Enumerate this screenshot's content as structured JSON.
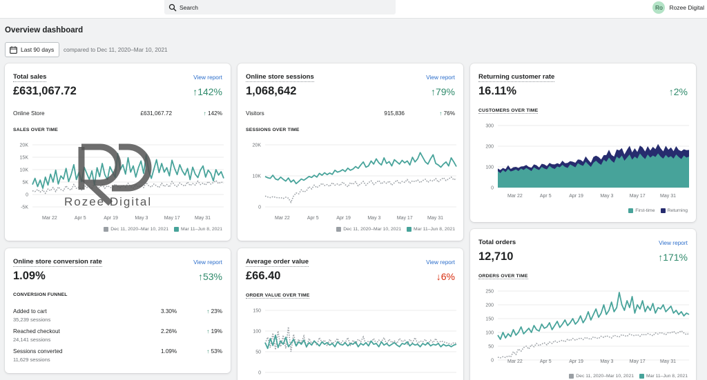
{
  "topbar": {
    "search_placeholder": "Search",
    "avatar_initials": "Ro",
    "store_name": "Rozee Digital"
  },
  "page": {
    "title": "Overview dashboard",
    "date_range_label": "Last 90 days",
    "compare_text": "compared to Dec 11, 2020–Mar 10, 2021"
  },
  "watermark": {
    "text": "Rozee Digital"
  },
  "colors": {
    "primary": "#47a39a",
    "secondary": "#9a9fa4",
    "returning": "#262c6e",
    "up": "#2f8a6b",
    "down": "#d72c0d",
    "link": "#2c6ecb"
  },
  "legend": {
    "prev": "Dec 11, 2020–Mar 10, 2021",
    "curr": "Mar 11–Jun 8, 2021",
    "first_time": "First-time",
    "returning": "Returning"
  },
  "x_ticks": [
    "Mar 22",
    "Apr 5",
    "Apr 19",
    "May 3",
    "May 17",
    "May 31"
  ],
  "cards": {
    "total_sales": {
      "title": "Total sales",
      "view": "View report",
      "value": "£631,067.72",
      "change": "↑142%",
      "row_label": "Online Store",
      "row_value": "£631,067.72",
      "row_change_arrow": "↑",
      "row_change": "142%",
      "section": "SALES OVER TIME"
    },
    "sessions": {
      "title": "Online store sessions",
      "view": "View report",
      "value": "1,068,642",
      "change": "↑79%",
      "row_label": "Visitors",
      "row_value": "915,836",
      "row_change_arrow": "↑",
      "row_change": "76%",
      "section": "SESSIONS OVER TIME"
    },
    "returning": {
      "title": "Returning customer rate",
      "value": "16.11%",
      "change": "↑2%",
      "section": "CUSTOMERS OVER TIME"
    },
    "conversion": {
      "title": "Online store conversion rate",
      "view": "View report",
      "value": "1.09%",
      "change": "↑53%",
      "section": "CONVERSION FUNNEL",
      "funnel": [
        {
          "label": "Added to cart",
          "sub": "35,239 sessions",
          "value": "3.30%",
          "arrow": "↑",
          "change": "23%"
        },
        {
          "label": "Reached checkout",
          "sub": "24,141 sessions",
          "value": "2.26%",
          "arrow": "↑",
          "change": "19%"
        },
        {
          "label": "Sessions converted",
          "sub": "11,629 sessions",
          "value": "1.09%",
          "arrow": "↑",
          "change": "53%"
        }
      ]
    },
    "aov": {
      "title": "Average order value",
      "view": "View report",
      "value": "£66.40",
      "change": "↓6%",
      "section": "ORDER VALUE OVER TIME"
    },
    "orders": {
      "title": "Total orders",
      "view": "View report",
      "value": "12,710",
      "change": "↑171%",
      "section": "ORDERS OVER TIME"
    }
  },
  "chart_data": [
    {
      "type": "line",
      "id": "sales",
      "y_ticks": [
        "20K",
        "15K",
        "10K",
        "5K",
        "0",
        "-5K"
      ],
      "ylim": [
        -5000,
        20000
      ],
      "series": [
        {
          "name": "Mar 11–Jun 8, 2021",
          "values": [
            4000,
            6500,
            3200,
            5800,
            2500,
            7000,
            3800,
            8200,
            5000,
            9800,
            4200,
            7500,
            6200,
            10500,
            5200,
            8000,
            12000,
            6000,
            9000,
            5200,
            11000,
            8500,
            6000,
            9500,
            3800,
            10800,
            7200,
            12500,
            8000,
            6000,
            11200,
            9000,
            7000,
            16500,
            10000,
            12000,
            8200,
            14800,
            9000,
            11500,
            7000,
            10800,
            13500,
            8500,
            16000,
            9500,
            6500,
            10200,
            14000,
            8800,
            12500,
            9000,
            10800,
            7500,
            13800,
            10500,
            8000,
            12000,
            9500,
            7800,
            10500,
            6000,
            11000,
            8200,
            6800,
            9800,
            11500,
            7000,
            9800,
            8500,
            5500,
            10000,
            7800,
            9200,
            6500
          ]
        },
        {
          "name": "Dec 11, 2020–Mar 10, 2021",
          "values": [
            1500,
            1200,
            2000,
            1000,
            1800,
            500,
            2200,
            1500,
            2800,
            1200,
            3000,
            2000,
            1500,
            3500,
            2200,
            1800,
            4000,
            2500,
            3000,
            1800,
            3800,
            2800,
            3200,
            2200,
            4500,
            3000,
            2800,
            4000,
            2500,
            3500,
            3000,
            2200,
            4200,
            3200,
            2800,
            3800,
            3000,
            4500,
            3200,
            2600,
            4000,
            3000,
            3600,
            2800,
            4800,
            3500,
            3000,
            4200,
            3500,
            2800,
            4500,
            3200,
            4000,
            3000,
            5200,
            3800,
            3200,
            4600,
            3800,
            3400,
            5000,
            3600,
            4400,
            3800,
            5400,
            4000,
            4600,
            3800,
            5200,
            4200,
            4800,
            5600,
            4400,
            5000,
            4600
          ]
        }
      ]
    },
    {
      "type": "line",
      "id": "sessions",
      "y_ticks": [
        "20K",
        "10K",
        "0"
      ],
      "ylim": [
        0,
        20000
      ],
      "series": [
        {
          "name": "Mar 11–Jun 8, 2021",
          "values": [
            9800,
            9400,
            9200,
            10200,
            9000,
            8700,
            9600,
            8900,
            8300,
            9300,
            8000,
            8700,
            7500,
            8200,
            9000,
            8600,
            9200,
            9800,
            9500,
            10200,
            9600,
            10800,
            10200,
            11000,
            10400,
            10900,
            10500,
            11800,
            11200,
            11500,
            12000,
            11400,
            12500,
            11800,
            12200,
            13000,
            12400,
            13500,
            14500,
            12800,
            13200,
            14800,
            13800,
            15500,
            14200,
            13500,
            15800,
            14000,
            14600,
            13200,
            15200,
            14500,
            13800,
            15000,
            14200,
            14800,
            13500,
            16000,
            14500,
            15500,
            17500,
            16000,
            14500,
            13800,
            15500,
            16800,
            14000,
            13500,
            12800,
            13800,
            14500,
            13200,
            15800,
            14500,
            13000
          ]
        },
        {
          "name": "Dec 11, 2020–Mar 10, 2021",
          "values": [
            3500,
            3200,
            3000,
            3300,
            3100,
            2900,
            3000,
            2700,
            3100,
            2800,
            1500,
            3500,
            4500,
            4200,
            5500,
            4800,
            5200,
            6500,
            5800,
            7000,
            6200,
            6800,
            7600,
            6900,
            7200,
            6600,
            7800,
            7000,
            7400,
            6900,
            8000,
            7200,
            6500,
            7800,
            7300,
            8100,
            6800,
            7500,
            8200,
            7000,
            7800,
            8400,
            7200,
            7900,
            8500,
            7400,
            8100,
            7600,
            8300,
            7000,
            7800,
            8600,
            7500,
            8200,
            7900,
            8800,
            7600,
            8400,
            8100,
            8700,
            7800,
            8500,
            8900,
            7900,
            8600,
            8300,
            9100,
            8000,
            8800,
            9400,
            8500,
            9000,
            9600,
            8700,
            9200
          ]
        }
      ]
    },
    {
      "type": "area",
      "id": "customers",
      "y_ticks": [
        "300",
        "200",
        "100",
        "0"
      ],
      "ylim": [
        0,
        300
      ],
      "series": [
        {
          "name": "First-time",
          "values": [
            80,
            70,
            85,
            75,
            90,
            78,
            82,
            88,
            80,
            92,
            85,
            95,
            88,
            80,
            98,
            90,
            85,
            100,
            92,
            88,
            105,
            95,
            90,
            102,
            98,
            110,
            100,
            95,
            112,
            105,
            98,
            118,
            110,
            105,
            125,
            112,
            100,
            120,
            130,
            118,
            110,
            135,
            125,
            145,
            130,
            120,
            150,
            140,
            155,
            130,
            145,
            160,
            135,
            150,
            140,
            165,
            150,
            138,
            160,
            145,
            155,
            148,
            165,
            150,
            140,
            158,
            145,
            152,
            140,
            160,
            148,
            138,
            155,
            145,
            150
          ]
        },
        {
          "name": "Returning",
          "values": [
            12,
            15,
            10,
            14,
            18,
            12,
            16,
            12,
            15,
            10,
            18,
            14,
            12,
            16,
            14,
            18,
            12,
            15,
            20,
            16,
            14,
            18,
            22,
            16,
            15,
            20,
            18,
            24,
            16,
            20,
            22,
            18,
            24,
            20,
            26,
            22,
            20,
            28,
            24,
            30,
            26,
            22,
            32,
            38,
            28,
            30,
            34,
            40,
            36,
            30,
            38,
            42,
            35,
            40,
            32,
            38,
            44,
            36,
            40,
            34,
            42,
            38,
            46,
            40,
            35,
            44,
            38,
            42,
            36,
            40,
            34,
            38,
            30,
            36,
            32
          ]
        }
      ]
    },
    {
      "type": "line",
      "id": "aov",
      "y_ticks": [
        "150",
        "100",
        "50",
        "0"
      ],
      "ylim": [
        0,
        150
      ],
      "series": [
        {
          "name": "Mar 11–Jun 8, 2021",
          "values": [
            72,
            58,
            82,
            65,
            90,
            60,
            76,
            68,
            85,
            62,
            70,
            80,
            64,
            74,
            68,
            78,
            62,
            72,
            66,
            76,
            70,
            64,
            74,
            68,
            72,
            66,
            70,
            62,
            74,
            68,
            66,
            72,
            64,
            70,
            68,
            74,
            62,
            70,
            66,
            72,
            64,
            76,
            68,
            70,
            62,
            74,
            66,
            70,
            64,
            68,
            72,
            66,
            62,
            70,
            68,
            74,
            64,
            70,
            66,
            68,
            62,
            70,
            66,
            72,
            64,
            68,
            66,
            70,
            62,
            68,
            64,
            66,
            62,
            66,
            68
          ]
        },
        {
          "name": "Dec 11, 2020–Mar 10, 2021",
          "values": [
            70,
            85,
            60,
            95,
            55,
            100,
            62,
            90,
            58,
            110,
            50,
            92,
            68,
            80,
            72,
            88,
            60,
            82,
            70,
            76,
            66,
            84,
            72,
            78,
            64,
            80,
            70,
            74,
            82,
            68,
            76,
            72,
            84,
            66,
            78,
            70,
            80,
            74,
            86,
            68,
            76,
            72,
            82,
            70,
            78,
            74,
            84,
            68,
            80,
            72,
            76,
            70,
            82,
            74,
            78,
            68,
            80,
            72,
            84,
            70,
            76,
            74,
            80,
            68,
            78,
            72,
            82,
            70,
            76,
            74,
            72,
            70,
            68,
            72,
            70
          ]
        }
      ]
    },
    {
      "type": "line",
      "id": "orders",
      "y_ticks": [
        "250",
        "200",
        "150",
        "100",
        "50",
        "0"
      ],
      "ylim": [
        0,
        250
      ],
      "series": [
        {
          "name": "Mar 11–Jun 8, 2021",
          "values": [
            90,
            75,
            100,
            80,
            95,
            85,
            110,
            90,
            100,
            120,
            95,
            105,
            115,
            100,
            125,
            110,
            105,
            130,
            115,
            120,
            135,
            110,
            125,
            140,
            118,
            130,
            145,
            125,
            135,
            150,
            130,
            140,
            160,
            135,
            150,
            175,
            145,
            165,
            185,
            155,
            170,
            200,
            165,
            180,
            210,
            175,
            190,
            245,
            200,
            180,
            215,
            190,
            230,
            170,
            200,
            185,
            215,
            175,
            195,
            180,
            205,
            170,
            190,
            185,
            200,
            175,
            185,
            195,
            170,
            180,
            165,
            175,
            160,
            170,
            165
          ]
        },
        {
          "name": "Dec 11, 2020–Mar 10, 2021",
          "values": [
            10,
            8,
            12,
            9,
            15,
            11,
            30,
            20,
            40,
            32,
            45,
            50,
            40,
            55,
            48,
            60,
            52,
            58,
            62,
            55,
            65,
            60,
            70,
            64,
            68,
            72,
            66,
            75,
            70,
            78,
            72,
            76,
            80,
            74,
            82,
            78,
            75,
            84,
            80,
            78,
            86,
            82,
            88,
            84,
            80,
            90,
            86,
            84,
            92,
            88,
            86,
            94,
            90,
            88,
            92,
            86,
            94,
            90,
            96,
            92,
            88,
            98,
            94,
            100,
            96,
            92,
            100,
            98,
            104,
            96,
            100,
            106,
            98,
            92,
            96
          ]
        }
      ]
    }
  ]
}
